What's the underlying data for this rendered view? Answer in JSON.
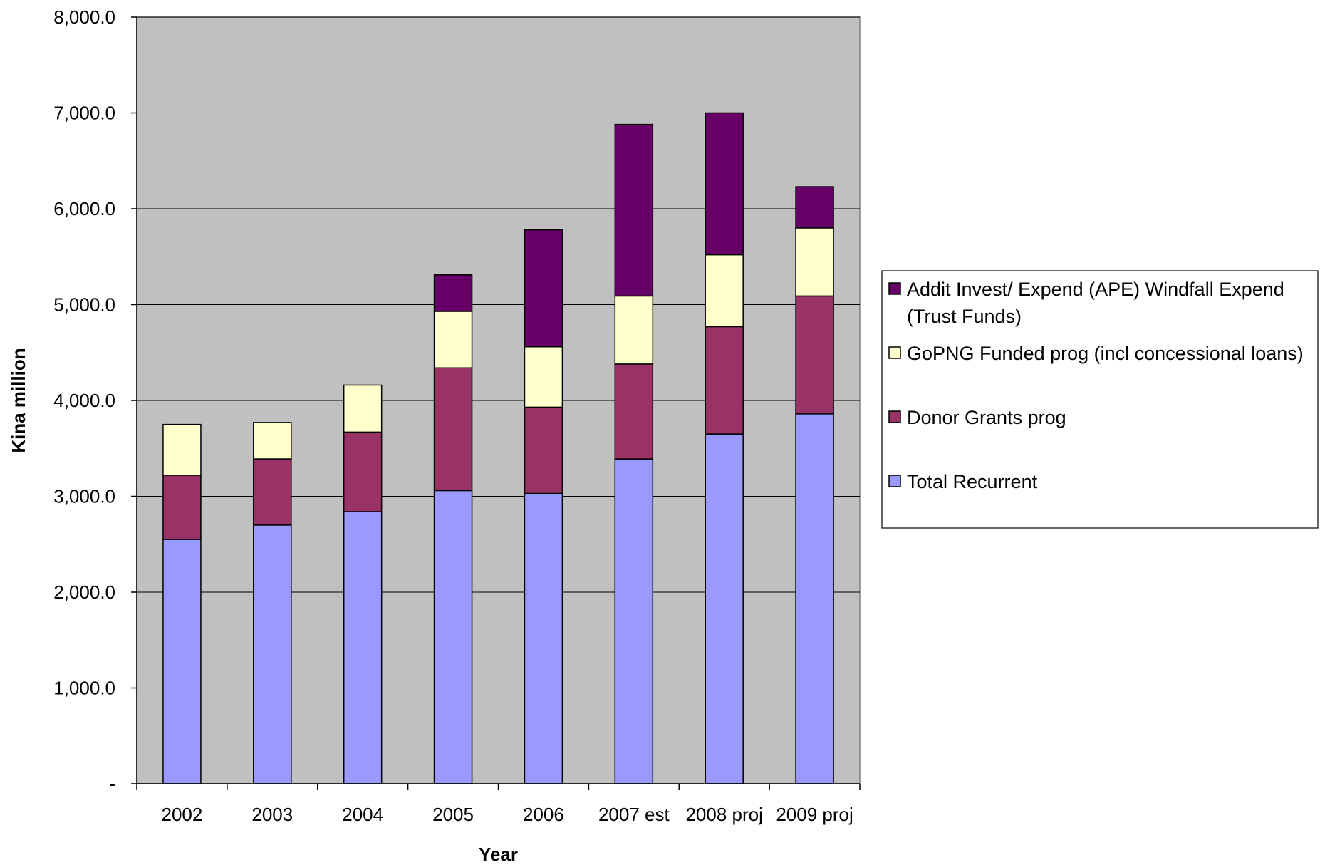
{
  "chart_data": {
    "type": "bar",
    "stacked": true,
    "title": "",
    "xlabel": "Year",
    "ylabel": "Kina million",
    "ylim": [
      0,
      8000
    ],
    "yticks": [
      0,
      1000,
      2000,
      3000,
      4000,
      5000,
      6000,
      7000,
      8000
    ],
    "ytick_labels": [
      "-",
      "1,000.0",
      "2,000.0",
      "3,000.0",
      "4,000.0",
      "5,000.0",
      "6,000.0",
      "7,000.0",
      "8,000.0"
    ],
    "grid": true,
    "legend_position": "right",
    "categories": [
      "2002",
      "2003",
      "2004",
      "2005",
      "2006",
      "2007 est",
      "2008 proj",
      "2009 proj"
    ],
    "series": [
      {
        "name": "Total Recurrent",
        "color": "#9999ff",
        "values": [
          2550,
          2700,
          2840,
          3060,
          3030,
          3390,
          3650,
          3860
        ]
      },
      {
        "name": "Donor Grants prog",
        "color": "#993366",
        "values": [
          670,
          690,
          830,
          1280,
          900,
          990,
          1120,
          1230
        ]
      },
      {
        "name": "GoPNG Funded prog (incl concessional loans)",
        "color": "#ffffcc",
        "values": [
          530,
          380,
          490,
          590,
          630,
          710,
          750,
          710
        ]
      },
      {
        "name": "Addit Invest/ Expend (APE) Windfall Expend (Trust Funds)",
        "color": "#660066",
        "values": [
          0,
          0,
          0,
          380,
          1220,
          1790,
          1480,
          430
        ]
      }
    ],
    "legend_order": [
      3,
      2,
      1,
      0
    ],
    "legend_lines": [
      [
        "Addit Invest/ Expend (APE) Windfall Expend",
        "(Trust Funds)"
      ],
      [
        "GoPNG Funded prog (incl concessional loans)"
      ],
      [
        "Donor Grants prog"
      ],
      [
        "Total Recurrent"
      ]
    ],
    "plot_background": "#c0c0c0"
  }
}
